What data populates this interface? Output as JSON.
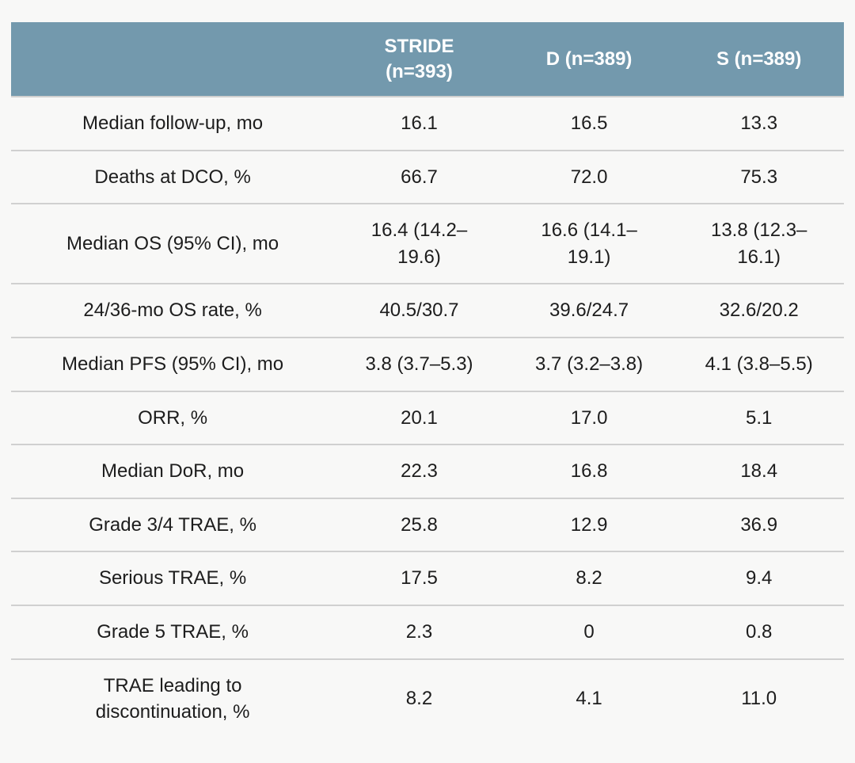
{
  "theme": {
    "page_bg": "#f8f8f7",
    "header_bg": "#7399ad",
    "header_text": "#ffffff",
    "body_text": "#1d1d1d",
    "divider": "#d0d0d0"
  },
  "chart_data": {
    "type": "table",
    "layout": {
      "grid": "horizontal row dividers only",
      "header_style": "solid steel-blue band, white bold text",
      "alignment": "all cells centered"
    },
    "columns": [
      "",
      "STRIDE (n=393)",
      "D (n=389)",
      "S (n=389)"
    ],
    "rows": [
      {
        "label": "Median follow-up, mo",
        "values": [
          "16.1",
          "16.5",
          "13.3"
        ]
      },
      {
        "label": "Deaths at DCO, %",
        "values": [
          "66.7",
          "72.0",
          "75.3"
        ]
      },
      {
        "label": "Median OS (95% CI), mo",
        "values": [
          "16.4 (14.2–19.6)",
          "16.6 (14.1–19.1)",
          "13.8 (12.3–16.1)"
        ]
      },
      {
        "label": "24/36-mo OS rate, %",
        "values": [
          "40.5/30.7",
          "39.6/24.7",
          "32.6/20.2"
        ]
      },
      {
        "label": "Median PFS (95% CI), mo",
        "values": [
          "3.8 (3.7–5.3)",
          "3.7 (3.2–3.8)",
          "4.1 (3.8–5.5)"
        ]
      },
      {
        "label": "ORR, %",
        "values": [
          "20.1",
          "17.0",
          "5.1"
        ]
      },
      {
        "label": "Median DoR, mo",
        "values": [
          "22.3",
          "16.8",
          "18.4"
        ]
      },
      {
        "label": "Grade 3/4 TRAE, %",
        "values": [
          "25.8",
          "12.9",
          "36.9"
        ]
      },
      {
        "label": "Serious TRAE, %",
        "values": [
          "17.5",
          "8.2",
          "9.4"
        ]
      },
      {
        "label": "Grade 5 TRAE, %",
        "values": [
          "2.3",
          "0",
          "0.8"
        ]
      },
      {
        "label": "TRAE leading to discontinuation, %",
        "values": [
          "8.2",
          "4.1",
          "11.0"
        ]
      }
    ]
  }
}
